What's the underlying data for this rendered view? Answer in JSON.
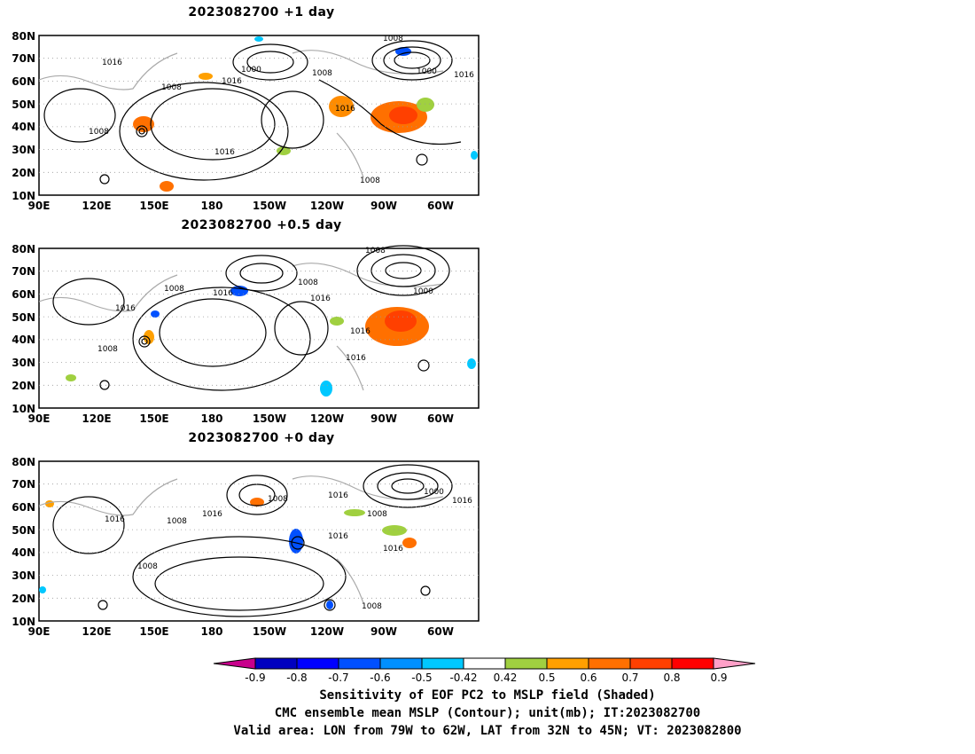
{
  "panels": [
    {
      "title": "2023082700  +1 day",
      "contour_labels": [
        "1008",
        "1016",
        "1000",
        "1008",
        "1016",
        "1008",
        "1016",
        "1000",
        "1016",
        "1016",
        "1008",
        "1008",
        "1016"
      ]
    },
    {
      "title": "2023082700  +0.5 day",
      "contour_labels": [
        "1008",
        "1016",
        "1008",
        "1016",
        "1008",
        "1016",
        "1000",
        "1016",
        "1016",
        "1008"
      ]
    },
    {
      "title": "2023082700  +0 day",
      "contour_labels": [
        "1016",
        "1008",
        "1016",
        "1008",
        "1016",
        "1016",
        "1000",
        "1016",
        "1008",
        "1016",
        "1008",
        "1008"
      ]
    }
  ],
  "axes": {
    "lat_labels": [
      "80N",
      "70N",
      "60N",
      "50N",
      "40N",
      "30N",
      "20N",
      "10N"
    ],
    "lon_labels": [
      "90E",
      "120E",
      "150E",
      "180",
      "150W",
      "120W",
      "90W",
      "60W"
    ]
  },
  "colorbar": {
    "labels": [
      "-0.9",
      "-0.8",
      "-0.7",
      "-0.6",
      "-0.5",
      "-0.42",
      "0.42",
      "0.5",
      "0.6",
      "0.7",
      "0.8",
      "0.9"
    ],
    "colors": [
      "#c8008c",
      "#0000c0",
      "#0000ff",
      "#0050ff",
      "#0090ff",
      "#00c8ff",
      "#ffffff",
      "#a0d040",
      "#ffa000",
      "#ff7000",
      "#ff4000",
      "#ff0000",
      "#ffa0c8"
    ]
  },
  "caption": {
    "line1": "Sensitivity of EOF PC2 to MSLP field (Shaded)",
    "line2": "CMC ensemble mean MSLP (Contour); unit(mb); IT:2023082700",
    "line3": "Valid area: LON from 79W to 62W, LAT from 32N to 45N; VT: 2023082800"
  }
}
